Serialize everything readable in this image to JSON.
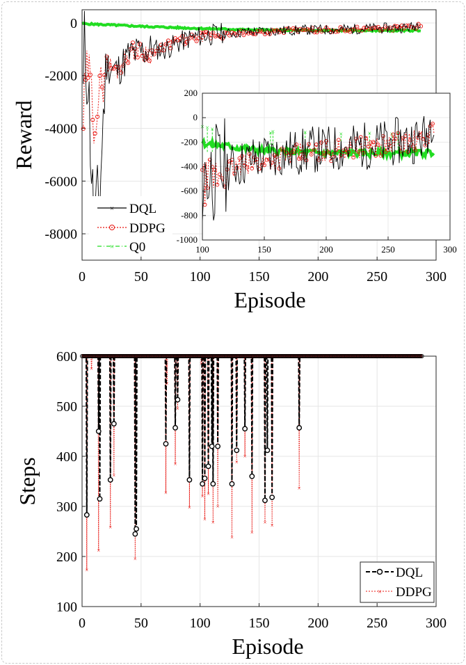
{
  "chart_data": [
    {
      "type": "line",
      "xlabel": "Episode",
      "ylabel": "Reward",
      "xlim": [
        0,
        300
      ],
      "ylim": [
        -9000,
        500
      ],
      "xticks": [
        "0",
        "50",
        "100",
        "150",
        "200",
        "250",
        "300"
      ],
      "yticks": [
        "0",
        "-2000",
        "-4000",
        "-6000",
        "-8000"
      ],
      "xtick_values": [
        0,
        50,
        100,
        150,
        200,
        250,
        300
      ],
      "ytick_values": [
        0,
        -2000,
        -4000,
        -6000,
        -8000
      ],
      "grid": true,
      "legend_position": "bottom-left",
      "series": [
        {
          "name": "DQL",
          "color": "#000000",
          "x": [
            0,
            2,
            5,
            10,
            15,
            20,
            30,
            40,
            50,
            60,
            70,
            80,
            90,
            100,
            110,
            120,
            130,
            140,
            150,
            160,
            170,
            180,
            190,
            200,
            210,
            220,
            230,
            240,
            250,
            260,
            270,
            280,
            287
          ],
          "y": [
            -4700,
            -1000,
            -2000,
            -7800,
            -6500,
            -1600,
            -1800,
            -1200,
            -1100,
            -1000,
            -1000,
            -800,
            -600,
            -500,
            -450,
            -400,
            -380,
            -340,
            -320,
            -300,
            -290,
            -280,
            -260,
            -260,
            -250,
            -240,
            -230,
            -220,
            -210,
            -190,
            -180,
            -160,
            50
          ]
        },
        {
          "name": "DDPG",
          "color": "#e8140f",
          "x": [
            0,
            2,
            5,
            10,
            15,
            20,
            30,
            40,
            50,
            60,
            70,
            80,
            90,
            100,
            110,
            120,
            130,
            140,
            150,
            160,
            170,
            180,
            190,
            200,
            210,
            220,
            230,
            240,
            250,
            260,
            270,
            280,
            287
          ],
          "y": [
            -4700,
            -2800,
            -1600,
            -3600,
            -2800,
            -1500,
            -1800,
            -1100,
            -1000,
            -1200,
            -900,
            -700,
            -650,
            -550,
            -480,
            -430,
            -400,
            -380,
            -360,
            -330,
            -310,
            -290,
            -280,
            -270,
            -260,
            -250,
            -240,
            -230,
            -220,
            -200,
            -190,
            -180,
            -80
          ]
        },
        {
          "name": "Q0",
          "color": "#22dd22",
          "x": [
            0,
            25,
            50,
            75,
            100,
            125,
            150,
            175,
            200,
            225,
            250,
            275,
            287
          ],
          "y": [
            -30,
            -80,
            -130,
            -170,
            -210,
            -240,
            -270,
            -280,
            -290,
            -290,
            -290,
            -290,
            -285
          ]
        }
      ],
      "inset": {
        "xlim": [
          100,
          300
        ],
        "ylim": [
          -1000,
          200
        ],
        "xticks": [
          "100",
          "150",
          "200",
          "250",
          "300"
        ],
        "yticks": [
          "200",
          "0",
          "-200",
          "-400",
          "-600",
          "-800",
          "-1000"
        ],
        "xtick_values": [
          100,
          150,
          200,
          250,
          300
        ],
        "ytick_values": [
          200,
          0,
          -200,
          -400,
          -600,
          -800,
          -1000
        ]
      }
    },
    {
      "type": "line",
      "xlabel": "Episode",
      "ylabel": "Steps",
      "xlim": [
        0,
        300
      ],
      "ylim": [
        100,
        600
      ],
      "xticks": [
        "0",
        "50",
        "100",
        "150",
        "200",
        "250",
        "300"
      ],
      "yticks": [
        "600",
        "500",
        "400",
        "300",
        "200",
        "100"
      ],
      "xtick_values": [
        0,
        50,
        100,
        150,
        200,
        250,
        300
      ],
      "ytick_values": [
        600,
        500,
        400,
        300,
        200,
        100
      ],
      "grid": true,
      "legend_position": "bottom-right",
      "x_end": 288,
      "series": [
        {
          "name": "DQL",
          "color": "#000000",
          "baseline": 600,
          "dips": [
            [
              4,
              283
            ],
            [
              14,
              450
            ],
            [
              15,
              315
            ],
            [
              24,
              353
            ],
            [
              27,
              465
            ],
            [
              45,
              245
            ],
            [
              46,
              255
            ],
            [
              71,
              425
            ],
            [
              79,
              457
            ],
            [
              81,
              513
            ],
            [
              91,
              353
            ],
            [
              102,
              345
            ],
            [
              104,
              356
            ],
            [
              107,
              380
            ],
            [
              110,
              420
            ],
            [
              111,
              345
            ],
            [
              115,
              420
            ],
            [
              127,
              345
            ],
            [
              131,
              412
            ],
            [
              138,
              455
            ],
            [
              144,
              360
            ],
            [
              155,
              312
            ],
            [
              157,
              412
            ],
            [
              161,
              318
            ],
            [
              184,
              457
            ]
          ]
        },
        {
          "name": "DDPG",
          "color": "#e8140f",
          "baseline": 600,
          "dips": [
            [
              4,
              173
            ],
            [
              8,
              575
            ],
            [
              14,
              212
            ],
            [
              24,
              258
            ],
            [
              27,
              362
            ],
            [
              45,
              195
            ],
            [
              71,
              327
            ],
            [
              72,
              545
            ],
            [
              79,
              385
            ],
            [
              81,
              495
            ],
            [
              91,
              298
            ],
            [
              101,
              585
            ],
            [
              102,
              320
            ],
            [
              104,
              274
            ],
            [
              107,
              325
            ],
            [
              111,
              268
            ],
            [
              115,
              300
            ],
            [
              127,
              238
            ],
            [
              131,
              388
            ],
            [
              138,
              400
            ],
            [
              144,
              248
            ],
            [
              155,
              268
            ],
            [
              161,
              262
            ],
            [
              184,
              336
            ]
          ]
        }
      ]
    }
  ]
}
